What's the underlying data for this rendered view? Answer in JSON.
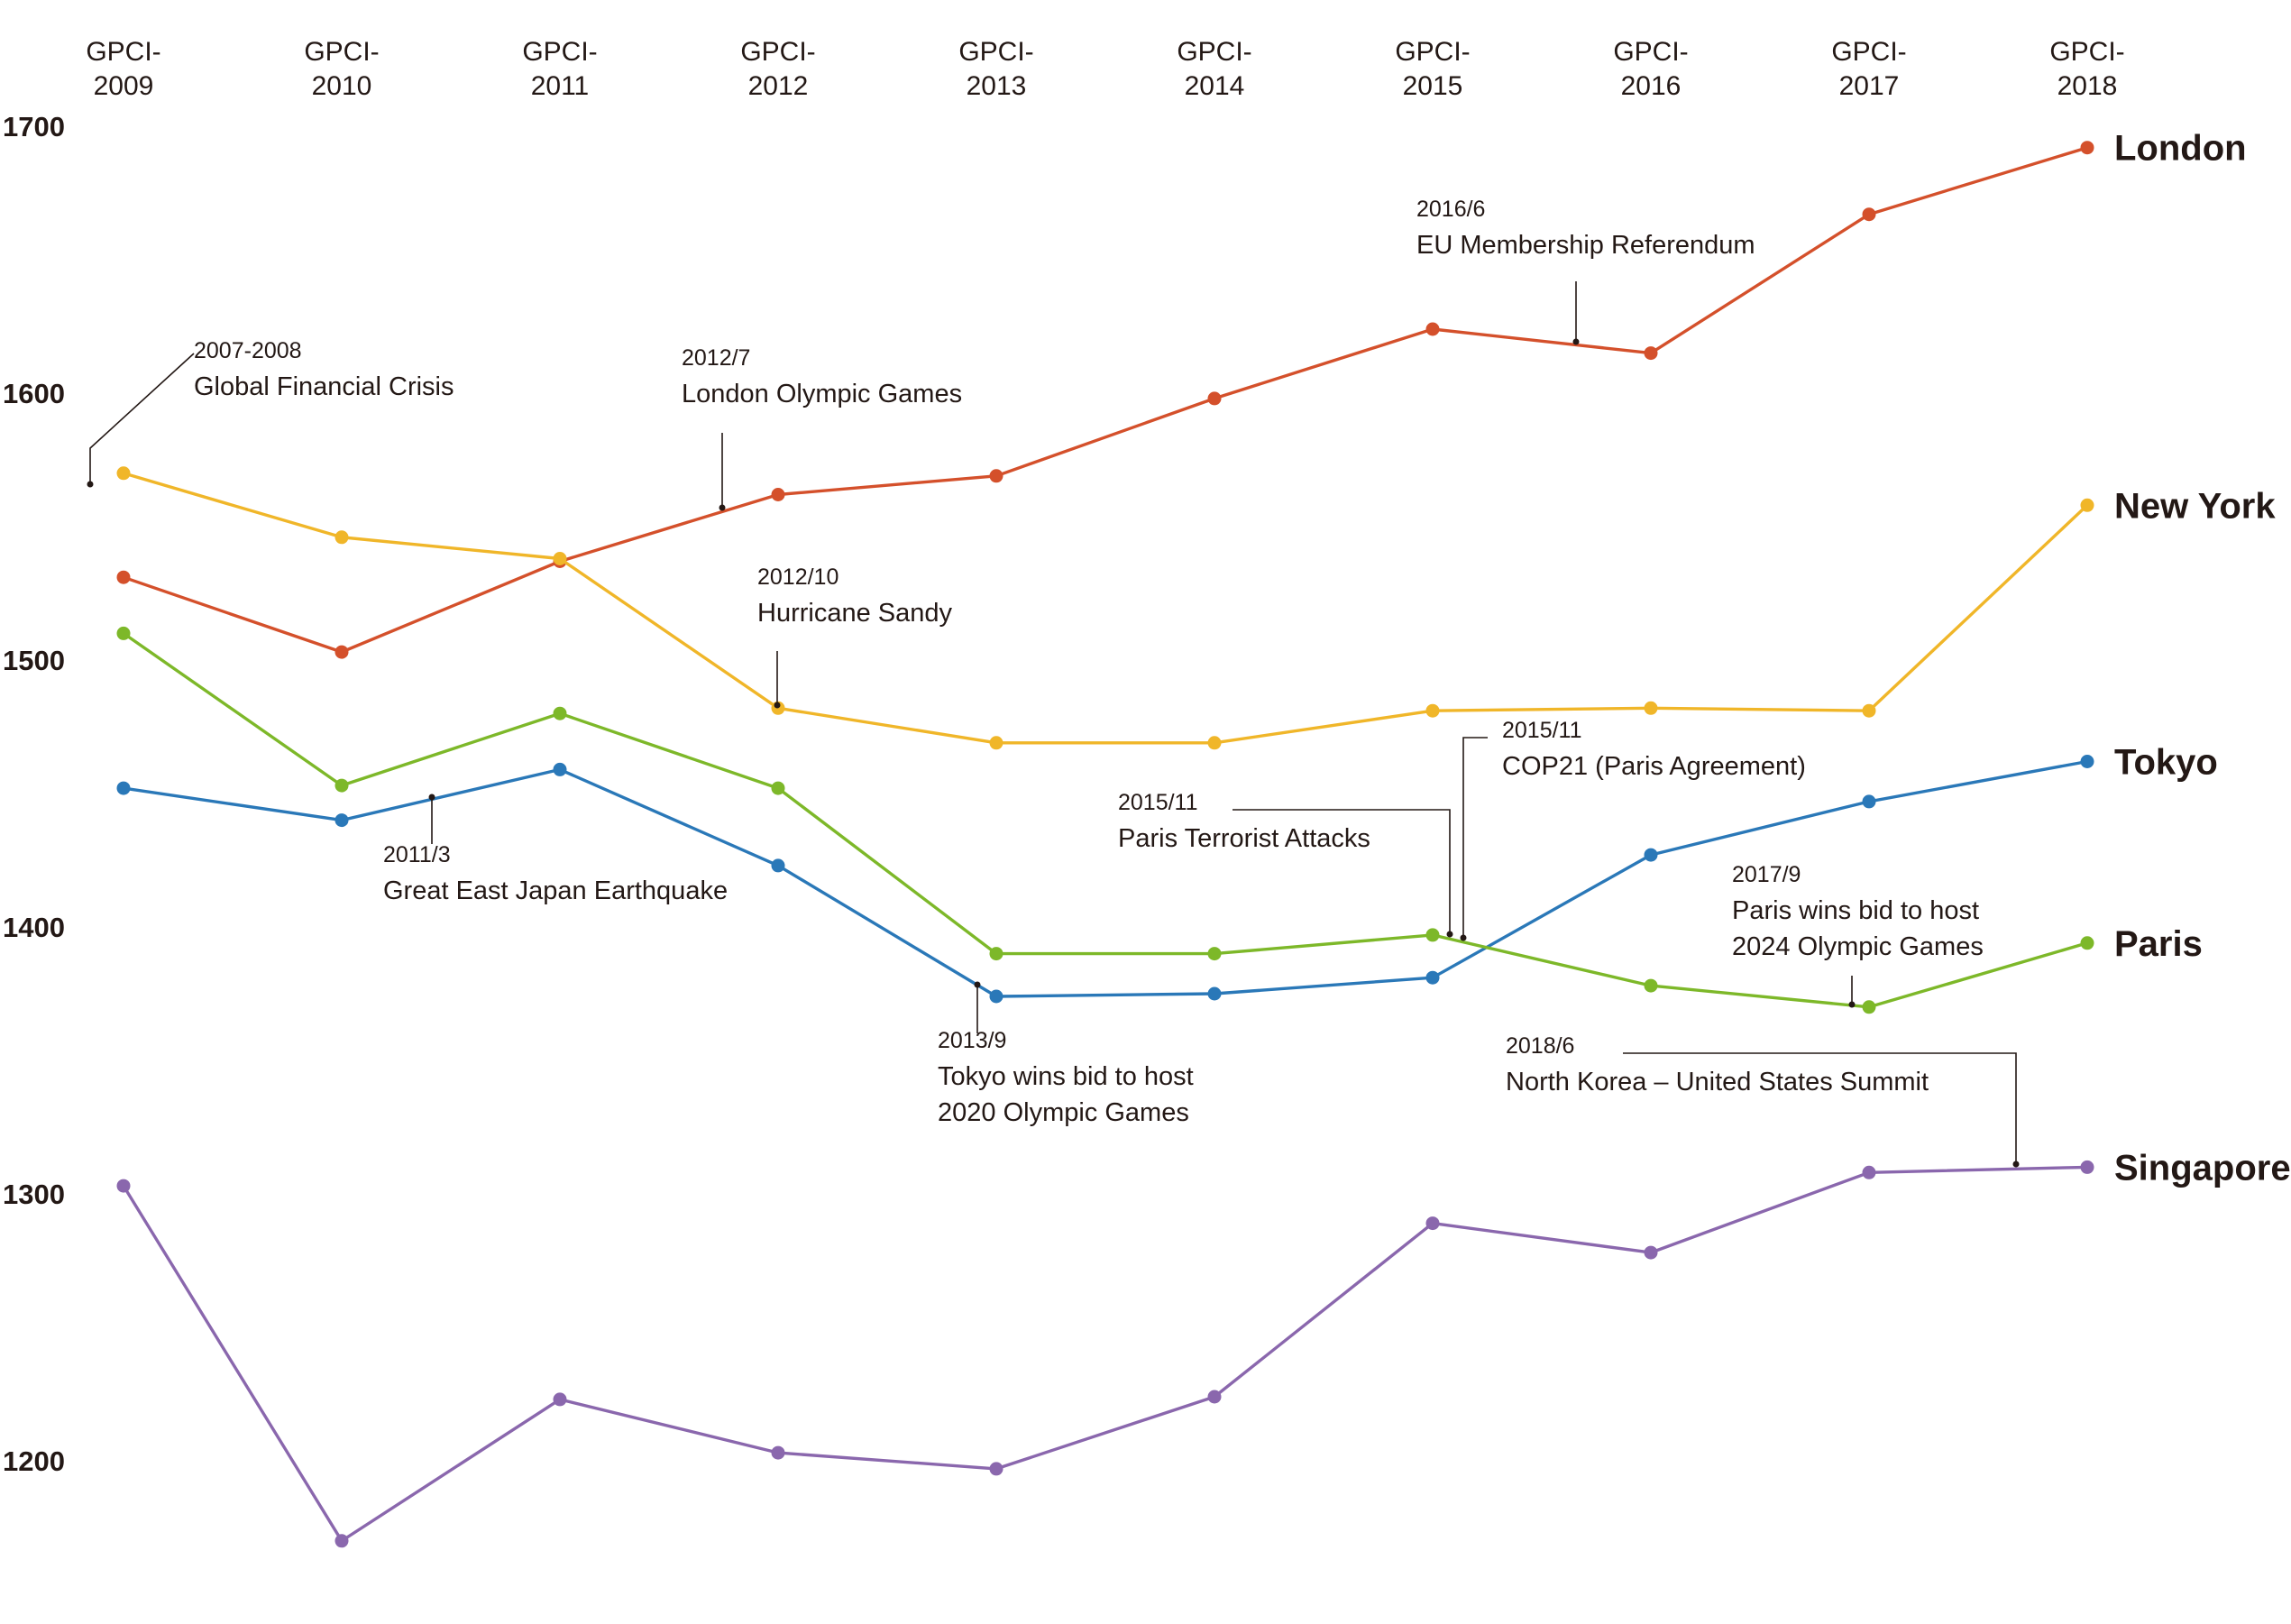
{
  "chart_data": {
    "type": "line",
    "categories": [
      [
        "GPCI-",
        "2009"
      ],
      [
        "GPCI-",
        "2010"
      ],
      [
        "GPCI-",
        "2011"
      ],
      [
        "GPCI-",
        "2012"
      ],
      [
        "GPCI-",
        "2013"
      ],
      [
        "GPCI-",
        "2014"
      ],
      [
        "GPCI-",
        "2015"
      ],
      [
        "GPCI-",
        "2016"
      ],
      [
        "GPCI-",
        "2017"
      ],
      [
        "GPCI-",
        "2018"
      ]
    ],
    "y_ticks": [
      "1700",
      "1600",
      "1500",
      "1400",
      "1300",
      "1200"
    ],
    "ylim": [
      1165,
      1705
    ],
    "grid": false,
    "series": [
      {
        "name": "London",
        "color": "#d4502b",
        "values": [
          1531,
          1503,
          1537,
          1562,
          1569,
          1598,
          1624,
          1615,
          1667,
          1692
        ]
      },
      {
        "name": "New York",
        "color": "#f0b629",
        "values": [
          1570,
          1546,
          1538,
          1482,
          1469,
          1469,
          1481,
          1482,
          1481,
          1558
        ]
      },
      {
        "name": "Tokyo",
        "color": "#2a78b8",
        "values": [
          1452,
          1440,
          1459,
          1423,
          1374,
          1375,
          1381,
          1427,
          1447,
          1462
        ]
      },
      {
        "name": "Paris",
        "color": "#7db829",
        "values": [
          1510,
          1453,
          1480,
          1452,
          1390,
          1390,
          1397,
          1378,
          1370,
          1394
        ]
      },
      {
        "name": "Singapore",
        "color": "#8a67ad",
        "values": [
          1303,
          1170,
          1223,
          1203,
          1197,
          1224,
          1289,
          1278,
          1308,
          1310
        ]
      }
    ],
    "annotations": [
      {
        "date": "2007-2008",
        "lines": [
          "Global Financial Crisis"
        ]
      },
      {
        "date": "2012/7",
        "lines": [
          "London Olympic Games"
        ]
      },
      {
        "date": "2016/6",
        "lines": [
          "EU Membership Referendum"
        ]
      },
      {
        "date": "2012/10",
        "lines": [
          "Hurricane Sandy"
        ]
      },
      {
        "date": "2011/3",
        "lines": [
          "Great East Japan Earthquake"
        ]
      },
      {
        "date": "2015/11",
        "lines": [
          "COP21 (Paris Agreement)"
        ]
      },
      {
        "date": "2015/11",
        "lines": [
          "Paris Terrorist Attacks"
        ]
      },
      {
        "date": "2013/9",
        "lines": [
          "Tokyo wins bid to host",
          "2020 Olympic Games"
        ]
      },
      {
        "date": "2017/9",
        "lines": [
          "Paris wins bid to host",
          "2024 Olympic Games"
        ]
      },
      {
        "date": "2018/6",
        "lines": [
          "North Korea – United States Summit"
        ]
      }
    ]
  }
}
